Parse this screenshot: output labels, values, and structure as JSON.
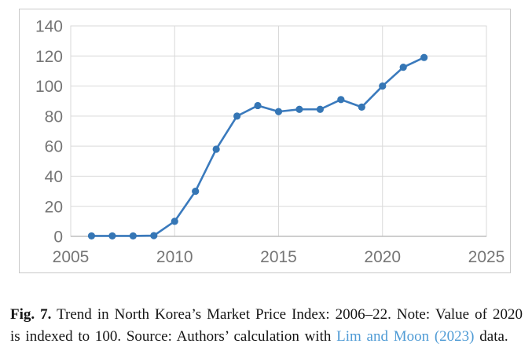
{
  "figure": {
    "caption": {
      "label": "Fig. 7.",
      "text_before_link": "Trend in North Korea’s Market Price Index: 2006–22. Note: Value of 2020 is indexed to 100. Source: Authors’ calculation with",
      "link_text": "Lim and Moon (2023)",
      "text_after_link": "data."
    }
  },
  "chart_data": {
    "type": "line",
    "title": "",
    "xlabel": "",
    "ylabel": "",
    "x": [
      2006,
      2007,
      2008,
      2009,
      2010,
      2011,
      2012,
      2013,
      2014,
      2015,
      2016,
      2017,
      2018,
      2019,
      2020,
      2021,
      2022
    ],
    "values": [
      0.3,
      0.3,
      0.3,
      0.5,
      10,
      30,
      58,
      80,
      87,
      83,
      84.5,
      84.5,
      91,
      86,
      100,
      112.5,
      119
    ],
    "xlim": [
      2005,
      2025
    ],
    "ylim": [
      0,
      140
    ],
    "x_ticks": [
      2005,
      2010,
      2015,
      2020,
      2025
    ],
    "y_ticks": [
      0,
      20,
      40,
      60,
      80,
      100,
      120,
      140
    ],
    "grid": true,
    "legend": "none",
    "marker": "circle",
    "line_color": "#3a7abd",
    "marker_color": "#3576b5",
    "gridline_color": "#d9d9d9",
    "axis_line_color": "#bdbdbd",
    "tick_label_color": "#767676"
  }
}
